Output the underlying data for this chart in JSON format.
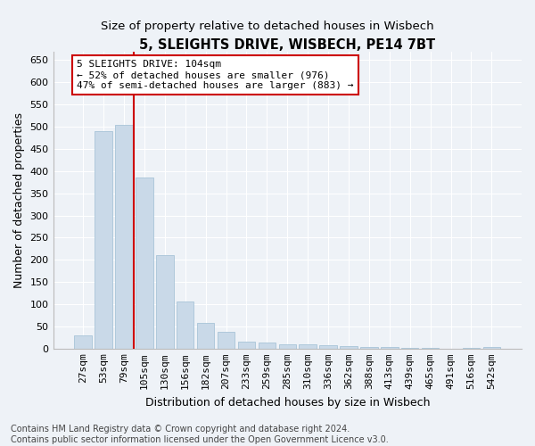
{
  "title": "5, SLEIGHTS DRIVE, WISBECH, PE14 7BT",
  "subtitle": "Size of property relative to detached houses in Wisbech",
  "xlabel": "Distribution of detached houses by size in Wisbech",
  "ylabel": "Number of detached properties",
  "categories": [
    "27sqm",
    "53sqm",
    "79sqm",
    "105sqm",
    "130sqm",
    "156sqm",
    "182sqm",
    "207sqm",
    "233sqm",
    "259sqm",
    "285sqm",
    "310sqm",
    "336sqm",
    "362sqm",
    "388sqm",
    "413sqm",
    "439sqm",
    "465sqm",
    "491sqm",
    "516sqm",
    "542sqm"
  ],
  "values": [
    30,
    490,
    505,
    385,
    210,
    107,
    58,
    38,
    16,
    13,
    10,
    9,
    8,
    5,
    4,
    4,
    1,
    1,
    0,
    2,
    3
  ],
  "bar_color": "#c9d9e8",
  "bar_edge_color": "#a8c4d8",
  "vline_x_index": 3,
  "vline_color": "#cc0000",
  "annotation_line1": "5 SLEIGHTS DRIVE: 104sqm",
  "annotation_line2": "← 52% of detached houses are smaller (976)",
  "annotation_line3": "47% of semi-detached houses are larger (883) →",
  "annotation_box_color": "#ffffff",
  "annotation_box_edge_color": "#cc0000",
  "ylim": [
    0,
    670
  ],
  "yticks": [
    0,
    50,
    100,
    150,
    200,
    250,
    300,
    350,
    400,
    450,
    500,
    550,
    600,
    650
  ],
  "footer_text": "Contains HM Land Registry data © Crown copyright and database right 2024.\nContains public sector information licensed under the Open Government Licence v3.0.",
  "background_color": "#eef2f7",
  "grid_color": "#ffffff",
  "title_fontsize": 10.5,
  "subtitle_fontsize": 9.5,
  "axis_label_fontsize": 9,
  "tick_fontsize": 8,
  "annotation_fontsize": 8,
  "footer_fontsize": 7
}
